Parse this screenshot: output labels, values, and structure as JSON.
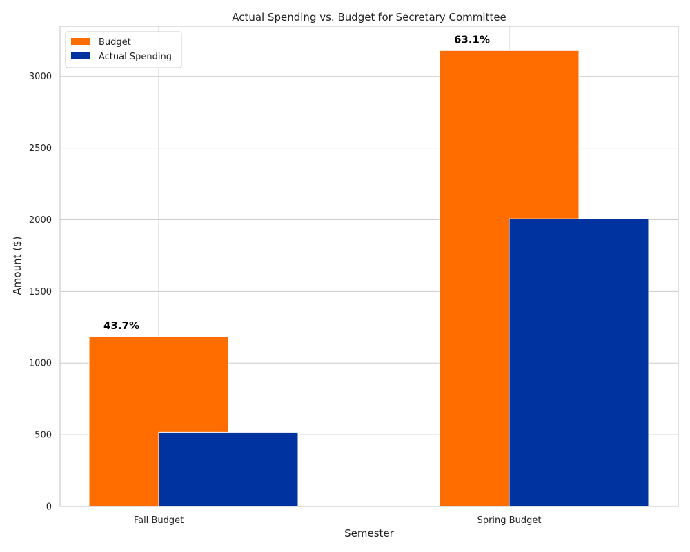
{
  "chart_data": {
    "type": "bar",
    "title": "Actual Spending vs. Budget for Secretary Committee",
    "xlabel": "Semester",
    "ylabel": "Amount ($)",
    "categories": [
      "Fall Budget",
      "Spring Budget"
    ],
    "series": [
      {
        "name": "Budget",
        "values": [
          1185,
          3180
        ],
        "color": "#ff6d00"
      },
      {
        "name": "Actual Spending",
        "values": [
          518,
          2006
        ],
        "color": "#0033a0"
      }
    ],
    "bar_labels": [
      "43.7%",
      "63.1%"
    ],
    "ylim": [
      0,
      3350
    ],
    "yticks": [
      0,
      500,
      1000,
      1500,
      2000,
      2500,
      3000
    ],
    "grid": true,
    "legend": "top-left"
  }
}
